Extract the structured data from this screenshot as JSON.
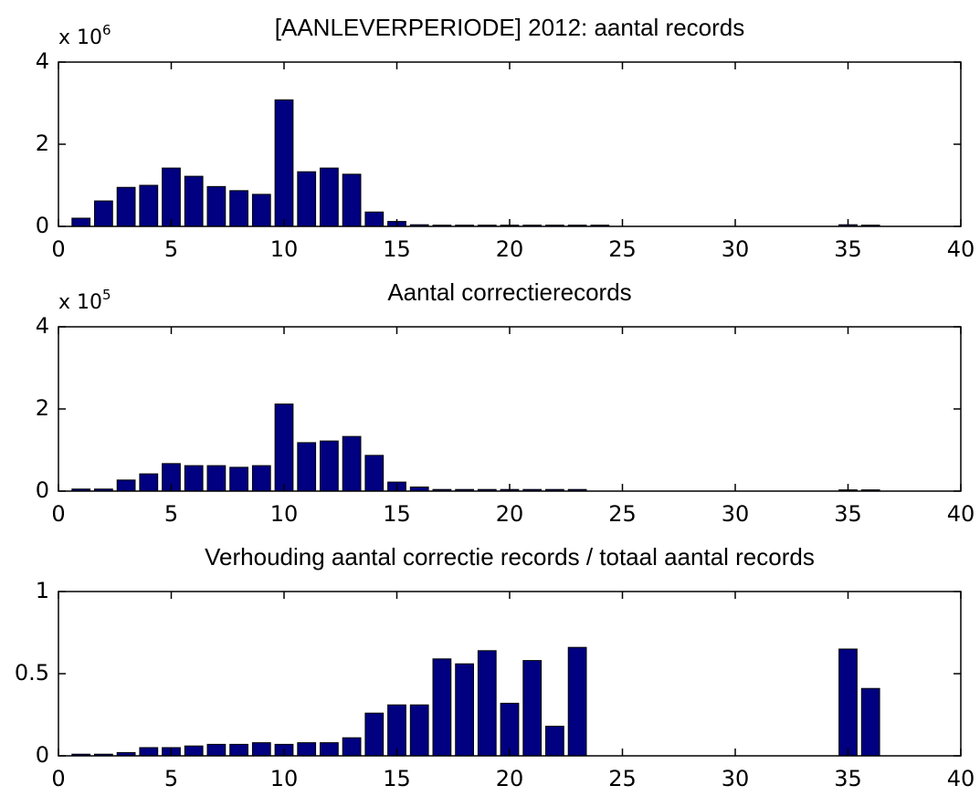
{
  "chart_data": [
    {
      "type": "bar",
      "title": "[AANLEVERPERIODE]   2012: aantal records",
      "y_multiplier": {
        "base": "x 10",
        "exponent": "6"
      },
      "x": [
        1,
        2,
        3,
        4,
        5,
        6,
        7,
        8,
        9,
        10,
        11,
        12,
        13,
        14,
        15,
        16,
        17,
        18,
        19,
        20,
        21,
        22,
        23,
        24,
        25,
        26,
        27,
        28,
        29,
        30,
        31,
        32,
        33,
        34,
        35,
        36
      ],
      "values": [
        0.2,
        0.62,
        0.95,
        1.0,
        1.42,
        1.22,
        0.97,
        0.87,
        0.78,
        3.08,
        1.33,
        1.42,
        1.27,
        0.35,
        0.12,
        0.04,
        0.03,
        0.03,
        0.03,
        0.03,
        0.03,
        0.03,
        0.03,
        0.03,
        0,
        0,
        0,
        0,
        0,
        0,
        0,
        0,
        0,
        0,
        0.04,
        0.03
      ],
      "color": "#000080",
      "xlim": [
        0,
        40
      ],
      "xticks": [
        0,
        5,
        10,
        15,
        20,
        25,
        30,
        35,
        40
      ],
      "ylim": [
        0,
        4
      ],
      "yticks": [
        0,
        2,
        4
      ]
    },
    {
      "type": "bar",
      "title": "Aantal correctierecords",
      "y_multiplier": {
        "base": "x 10",
        "exponent": "5"
      },
      "x": [
        1,
        2,
        3,
        4,
        5,
        6,
        7,
        8,
        9,
        10,
        11,
        12,
        13,
        14,
        15,
        16,
        17,
        18,
        19,
        20,
        21,
        22,
        23,
        24,
        25,
        26,
        27,
        28,
        29,
        30,
        31,
        32,
        33,
        34,
        35,
        36
      ],
      "values": [
        0.05,
        0.05,
        0.27,
        0.42,
        0.67,
        0.62,
        0.62,
        0.58,
        0.62,
        2.12,
        1.18,
        1.22,
        1.33,
        0.87,
        0.22,
        0.1,
        0.04,
        0.04,
        0.04,
        0.04,
        0.04,
        0.04,
        0.04,
        0,
        0,
        0,
        0,
        0,
        0,
        0,
        0,
        0,
        0,
        0,
        0.03,
        0.03
      ],
      "color": "#000080",
      "xlim": [
        0,
        40
      ],
      "xticks": [
        0,
        5,
        10,
        15,
        20,
        25,
        30,
        35,
        40
      ],
      "ylim": [
        0,
        4
      ],
      "yticks": [
        0,
        2,
        4
      ]
    },
    {
      "type": "bar",
      "title": "Verhouding aantal correctie records  / totaal aantal records",
      "x": [
        1,
        2,
        3,
        4,
        5,
        6,
        7,
        8,
        9,
        10,
        11,
        12,
        13,
        14,
        15,
        16,
        17,
        18,
        19,
        20,
        21,
        22,
        23,
        24,
        25,
        26,
        27,
        28,
        29,
        30,
        31,
        32,
        33,
        34,
        35,
        36
      ],
      "values": [
        0.01,
        0.01,
        0.02,
        0.05,
        0.05,
        0.06,
        0.07,
        0.07,
        0.08,
        0.07,
        0.08,
        0.08,
        0.11,
        0.26,
        0.31,
        0.31,
        0.59,
        0.56,
        0.64,
        0.32,
        0.58,
        0.18,
        0.66,
        0,
        0,
        0,
        0,
        0,
        0,
        0,
        0,
        0,
        0,
        0,
        0.65,
        0.41
      ],
      "color": "#000080",
      "xlim": [
        0,
        40
      ],
      "xticks": [
        0,
        5,
        10,
        15,
        20,
        25,
        30,
        35,
        40
      ],
      "ylim": [
        0,
        1
      ],
      "yticks": [
        0,
        0.5,
        1
      ]
    }
  ]
}
